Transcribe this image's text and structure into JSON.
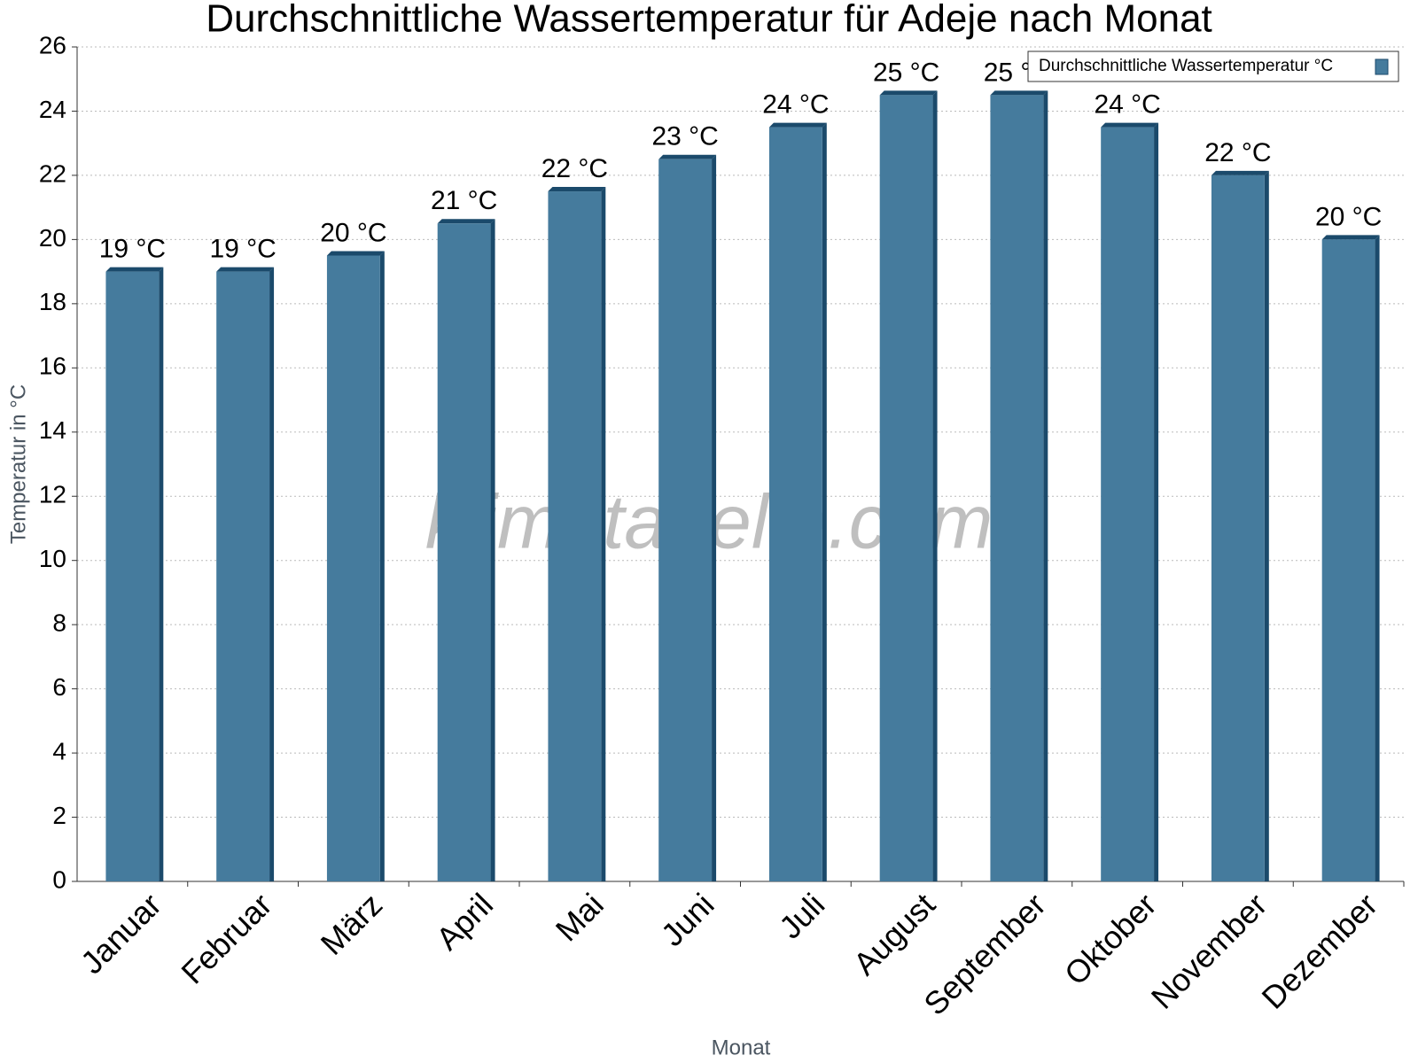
{
  "chart_data": {
    "type": "bar",
    "title": "Durchschnittliche Wassertemperatur für Adeje nach Monat",
    "x_label": "Monat",
    "y_label": "Temperatur in °C",
    "watermark": "klimatabelle.com",
    "categories": [
      "Januar",
      "Februar",
      "März",
      "April",
      "Mai",
      "Juni",
      "Juli",
      "August",
      "September",
      "Oktober",
      "November",
      "Dezember"
    ],
    "series": [
      {
        "name": "Durchschnittliche Wassertemperatur °C",
        "color": "#457b9d",
        "values": [
          19,
          19,
          19.5,
          20.5,
          21.5,
          22.5,
          23.5,
          24.5,
          24.5,
          23.5,
          22,
          20
        ],
        "value_labels": [
          "19 °C",
          "19 °C",
          "20 °C",
          "21 °C",
          "22 °C",
          "23 °C",
          "24 °C",
          "25 °C",
          "25 °C",
          "24 °C",
          "22 °C",
          "20 °C"
        ]
      }
    ],
    "ylim": [
      0,
      26
    ],
    "yticks": [
      0,
      2,
      4,
      6,
      8,
      10,
      12,
      14,
      16,
      18,
      20,
      22,
      24,
      26
    ],
    "grid": true,
    "legend": "top-right"
  }
}
